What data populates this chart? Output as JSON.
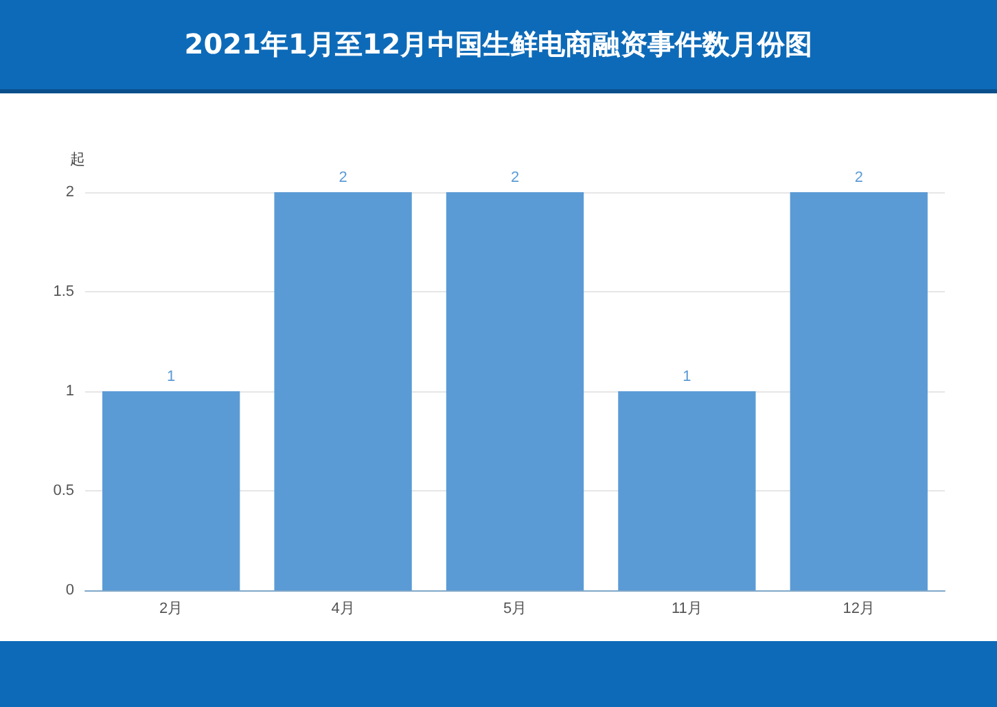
{
  "chart_data": {
    "type": "bar",
    "title": "2021年1月至12月中国生鲜电商融资事件数月份图",
    "ylabel": "起",
    "categories": [
      "2月",
      "4月",
      "5月",
      "11月",
      "12月"
    ],
    "values": [
      1,
      2,
      2,
      1,
      2
    ],
    "color": "#5b9bd5",
    "ylim": [
      0,
      2
    ],
    "yticks": [
      0,
      0.5,
      1,
      1.5,
      2
    ],
    "grid": "y",
    "data_labels": true
  }
}
